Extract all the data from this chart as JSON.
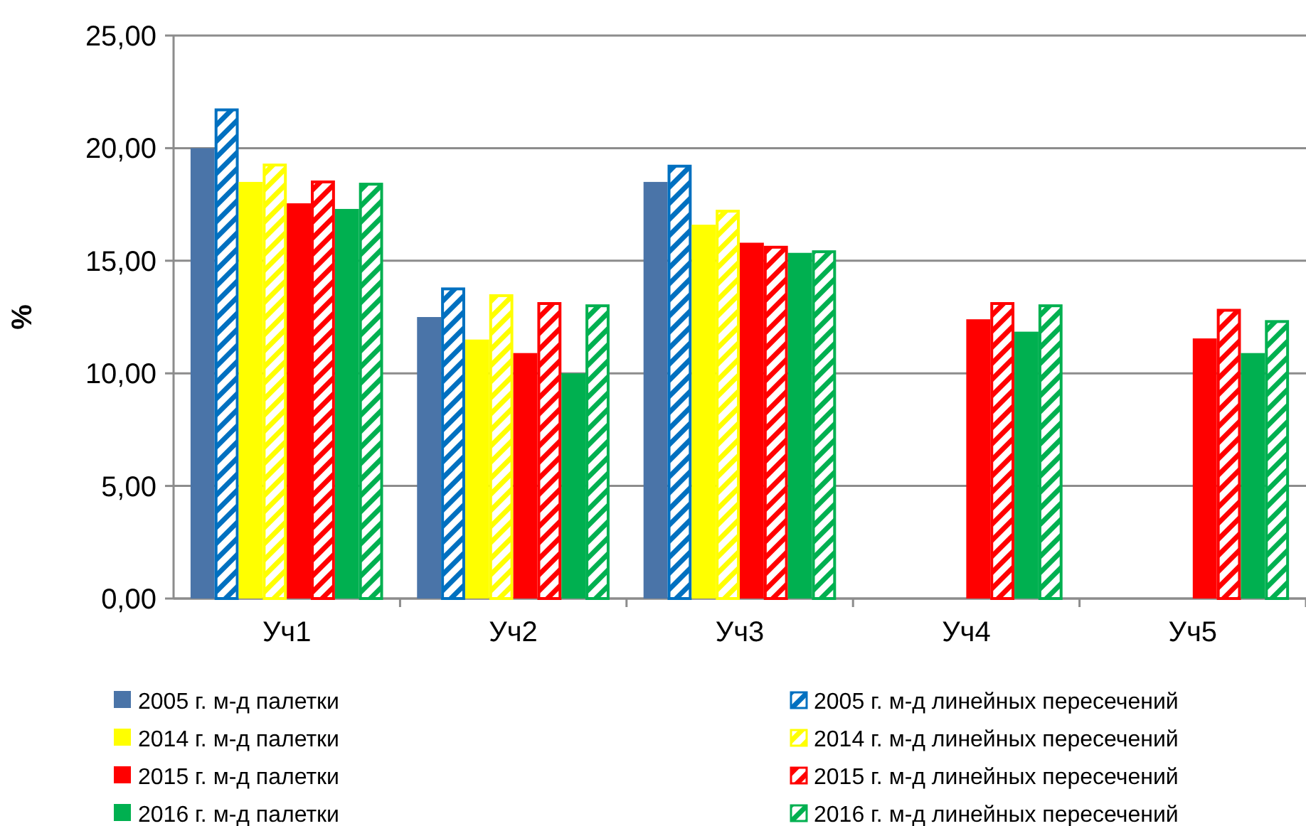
{
  "chart_data": {
    "type": "bar",
    "ylabel": "%",
    "categories": [
      "Уч1",
      "Уч2",
      "Уч3",
      "Уч4",
      "Уч5"
    ],
    "series": [
      {
        "name": "2005 г. м-д палетки",
        "color": "#4a74a8",
        "values": [
          20.0,
          12.5,
          18.5,
          null,
          null
        ]
      },
      {
        "name": "2005 г. м-д линейных пересечений",
        "color": "#0070c0",
        "values": [
          21.7,
          13.75,
          19.2,
          null,
          null
        ]
      },
      {
        "name": "2014 г. м-д палетки",
        "color": "#ffff00",
        "values": [
          18.5,
          11.5,
          16.6,
          null,
          null
        ]
      },
      {
        "name": "2014 г. м-д линейных пересечений",
        "color": "#ffff00",
        "values": [
          19.25,
          13.45,
          17.2,
          null,
          null
        ]
      },
      {
        "name": "2015 г. м-д палетки",
        "color": "#ff0000",
        "values": [
          17.55,
          10.9,
          15.8,
          12.4,
          11.55
        ]
      },
      {
        "name": "2015 г. м-д линейных пересечений",
        "color": "#ff0000",
        "values": [
          18.5,
          13.1,
          15.6,
          13.1,
          12.8
        ]
      },
      {
        "name": "2016 г. м-д палетки",
        "color": "#00b050",
        "values": [
          17.3,
          10.0,
          15.35,
          11.85,
          10.9
        ]
      },
      {
        "name": "2016 г. м-д линейных пересечений",
        "color": "#00b050",
        "values": [
          18.4,
          13.0,
          15.4,
          13.0,
          12.3
        ]
      }
    ],
    "ylim": [
      0,
      25
    ],
    "yticks": [
      {
        "value": 0,
        "label": "0,00"
      },
      {
        "value": 5,
        "label": "5,00"
      },
      {
        "value": 10,
        "label": "10,00"
      },
      {
        "value": 15,
        "label": "15,00"
      },
      {
        "value": 20,
        "label": "20,00"
      },
      {
        "value": 25,
        "label": "25,00"
      }
    ],
    "grid": "y",
    "legend": "bottom"
  }
}
